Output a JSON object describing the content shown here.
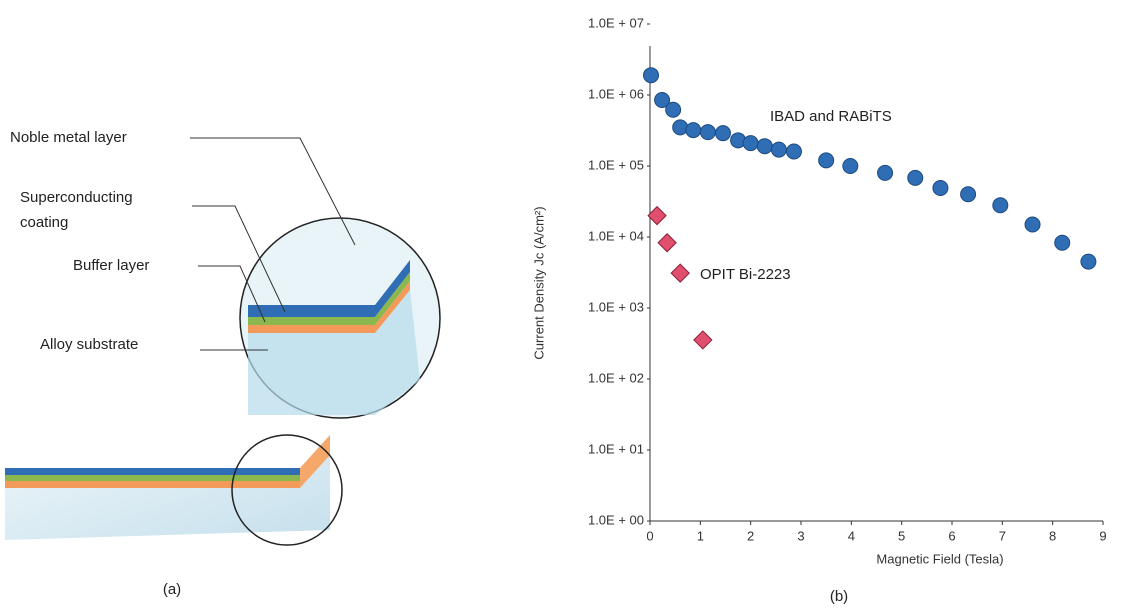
{
  "diagram": {
    "labels": [
      "Noble metal layer",
      "Superconducting",
      "coating",
      "Buffer layer",
      "Alloy substrate"
    ],
    "caption": "(a)"
  },
  "chart_data": {
    "type": "scatter",
    "caption": "(b)",
    "x_label": "Magnetic Field (Tesla)",
    "y_label": "Current Density Jc (A/cm²)",
    "log_y": true,
    "xlim": [
      0,
      9
    ],
    "ylim": [
      1,
      10000000
    ],
    "xticks": [
      0,
      1,
      2,
      3,
      4,
      5,
      6,
      7,
      8,
      9
    ],
    "yticks": [
      {
        "value": 1,
        "label": "1.0E + 00"
      },
      {
        "value": 10,
        "label": "1.0E + 01"
      },
      {
        "value": 100,
        "label": "1.0E + 02"
      },
      {
        "value": 1000,
        "label": "1.0E + 03"
      },
      {
        "value": 10000,
        "label": "1.0E + 04"
      },
      {
        "value": 100000,
        "label": "1.0E + 05"
      },
      {
        "value": 1000000,
        "label": "1.0E + 06"
      },
      {
        "value": 10000000,
        "label": "1.0E + 07"
      }
    ],
    "series": [
      {
        "name": "IBAD and RABiTS",
        "color": "#2f6db5",
        "marker": "circle",
        "x": [
          0.02,
          0.24,
          0.46,
          0.6,
          0.86,
          1.15,
          1.45,
          1.75,
          2.0,
          2.28,
          2.56,
          2.86,
          3.5,
          3.98,
          4.67,
          5.27,
          5.77,
          6.32,
          6.96,
          7.6,
          8.19,
          8.71
        ],
        "values": [
          1900000,
          850000,
          620000,
          350000,
          320000,
          300000,
          290000,
          230000,
          210000,
          190000,
          170000,
          160000,
          120000,
          100000,
          80000,
          68000,
          49000,
          40000,
          28000,
          15000,
          8300,
          4500
        ]
      },
      {
        "name": "OPIT Bi-2223",
        "color": "#e0506e",
        "marker": "diamond",
        "x": [
          0.14,
          0.34,
          0.6,
          1.05
        ],
        "values": [
          20000,
          8300,
          3100,
          355
        ]
      }
    ]
  }
}
